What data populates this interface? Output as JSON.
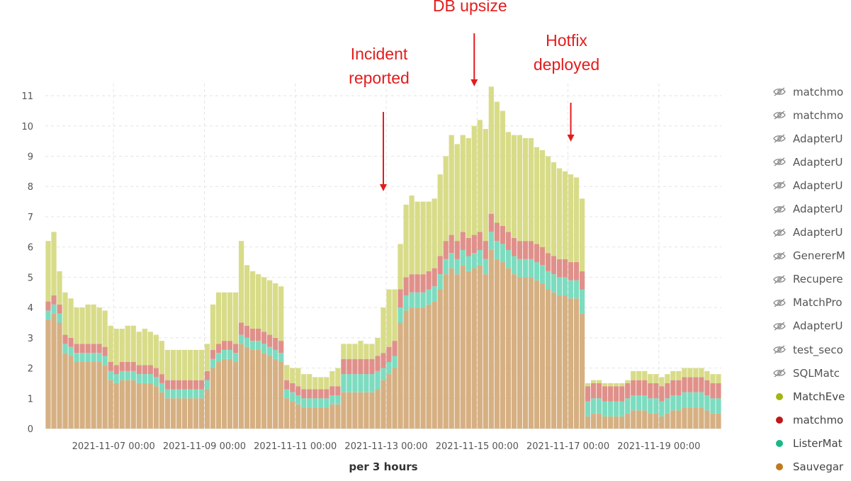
{
  "chart_data": {
    "type": "bar",
    "stacked": true,
    "xlabel": "per 3 hours",
    "ylabel": "",
    "ylim": [
      0,
      11.4
    ],
    "yticks": [
      0,
      1,
      2,
      3,
      4,
      5,
      6,
      7,
      8,
      9,
      10,
      11
    ],
    "grid": true,
    "interval_hours": 3,
    "x_start": "2021-11-05 12:00",
    "xtick_labels": [
      "2021-11-07 00:00",
      "2021-11-09 00:00",
      "2021-11-11 00:00",
      "2021-11-13 00:00",
      "2021-11-15 00:00",
      "2021-11-17 00:00",
      "2021-11-19 00:00"
    ],
    "xtick_index": [
      12,
      28,
      44,
      60,
      76,
      92,
      108
    ],
    "annotations": [
      {
        "lines": [
          "Incident",
          "reported"
        ],
        "at_index": 59
      },
      {
        "lines": [
          "DB upsize"
        ],
        "at_index": 75
      },
      {
        "lines": [
          "Hotfix",
          "deployed"
        ],
        "at_index": 92
      }
    ],
    "series": [
      {
        "name": "Sauvegarde",
        "color": "#d6b082",
        "values": [
          3.6,
          3.8,
          3.5,
          2.5,
          2.4,
          2.2,
          2.2,
          2.2,
          2.2,
          2.2,
          2.1,
          1.6,
          1.5,
          1.6,
          1.6,
          1.6,
          1.5,
          1.5,
          1.5,
          1.4,
          1.2,
          1.0,
          1.0,
          1.0,
          1.0,
          1.0,
          1.0,
          1.0,
          1.3,
          2.0,
          2.2,
          2.3,
          2.3,
          2.2,
          2.8,
          2.7,
          2.6,
          2.6,
          2.5,
          2.4,
          2.3,
          2.2,
          1.0,
          0.9,
          0.8,
          0.7,
          0.7,
          0.7,
          0.7,
          0.7,
          0.8,
          0.8,
          1.2,
          1.2,
          1.2,
          1.2,
          1.2,
          1.2,
          1.3,
          1.6,
          1.8,
          2.0,
          3.5,
          3.9,
          4.0,
          4.0,
          4.0,
          4.1,
          4.2,
          4.6,
          5.1,
          5.3,
          5.1,
          5.4,
          5.2,
          5.3,
          5.4,
          5.1,
          5.9,
          5.6,
          5.5,
          5.3,
          5.1,
          5.0,
          5.0,
          5.0,
          4.9,
          4.8,
          4.6,
          4.5,
          4.4,
          4.4,
          4.3,
          4.3,
          3.8,
          0.4,
          0.5,
          0.5,
          0.4,
          0.4,
          0.4,
          0.4,
          0.5,
          0.6,
          0.6,
          0.6,
          0.5,
          0.5,
          0.4,
          0.5,
          0.6,
          0.6,
          0.7,
          0.7,
          0.7,
          0.7,
          0.6,
          0.5,
          0.5
        ]
      },
      {
        "name": "ListerMatchs",
        "color": "#7ddcc0",
        "values": [
          0.3,
          0.3,
          0.3,
          0.3,
          0.3,
          0.3,
          0.3,
          0.3,
          0.3,
          0.3,
          0.3,
          0.3,
          0.3,
          0.3,
          0.3,
          0.3,
          0.3,
          0.3,
          0.3,
          0.3,
          0.3,
          0.3,
          0.3,
          0.3,
          0.3,
          0.3,
          0.3,
          0.3,
          0.3,
          0.3,
          0.3,
          0.3,
          0.3,
          0.3,
          0.3,
          0.3,
          0.3,
          0.3,
          0.3,
          0.3,
          0.3,
          0.3,
          0.3,
          0.3,
          0.3,
          0.3,
          0.3,
          0.3,
          0.3,
          0.3,
          0.3,
          0.3,
          0.6,
          0.6,
          0.6,
          0.6,
          0.6,
          0.6,
          0.6,
          0.4,
          0.4,
          0.4,
          0.5,
          0.5,
          0.5,
          0.5,
          0.5,
          0.5,
          0.5,
          0.5,
          0.5,
          0.5,
          0.5,
          0.5,
          0.5,
          0.5,
          0.5,
          0.5,
          0.6,
          0.6,
          0.6,
          0.6,
          0.6,
          0.6,
          0.6,
          0.6,
          0.6,
          0.6,
          0.6,
          0.6,
          0.6,
          0.6,
          0.6,
          0.6,
          0.8,
          0.5,
          0.5,
          0.5,
          0.5,
          0.5,
          0.5,
          0.5,
          0.5,
          0.5,
          0.5,
          0.5,
          0.5,
          0.5,
          0.5,
          0.5,
          0.5,
          0.5,
          0.5,
          0.5,
          0.5,
          0.5,
          0.5,
          0.5,
          0.5
        ]
      },
      {
        "name": "matchmodels",
        "color": "#e0908a",
        "values": [
          0.3,
          0.3,
          0.3,
          0.3,
          0.3,
          0.3,
          0.3,
          0.3,
          0.3,
          0.3,
          0.3,
          0.3,
          0.3,
          0.3,
          0.3,
          0.3,
          0.3,
          0.3,
          0.3,
          0.3,
          0.3,
          0.3,
          0.3,
          0.3,
          0.3,
          0.3,
          0.3,
          0.3,
          0.3,
          0.3,
          0.3,
          0.3,
          0.3,
          0.3,
          0.4,
          0.4,
          0.4,
          0.4,
          0.4,
          0.4,
          0.4,
          0.4,
          0.3,
          0.3,
          0.3,
          0.3,
          0.3,
          0.3,
          0.3,
          0.3,
          0.3,
          0.3,
          0.5,
          0.5,
          0.5,
          0.5,
          0.5,
          0.5,
          0.5,
          0.5,
          0.5,
          0.5,
          0.6,
          0.6,
          0.6,
          0.6,
          0.6,
          0.6,
          0.6,
          0.6,
          0.6,
          0.6,
          0.6,
          0.6,
          0.6,
          0.6,
          0.6,
          0.6,
          0.6,
          0.6,
          0.6,
          0.6,
          0.6,
          0.6,
          0.6,
          0.6,
          0.6,
          0.6,
          0.6,
          0.6,
          0.6,
          0.6,
          0.6,
          0.6,
          0.6,
          0.5,
          0.5,
          0.5,
          0.5,
          0.5,
          0.5,
          0.5,
          0.5,
          0.5,
          0.5,
          0.5,
          0.5,
          0.5,
          0.5,
          0.5,
          0.5,
          0.5,
          0.5,
          0.5,
          0.5,
          0.5,
          0.5,
          0.5,
          0.5
        ]
      },
      {
        "name": "MatchEvents",
        "color": "#d8dc88",
        "values": [
          2.0,
          2.1,
          1.1,
          1.4,
          1.3,
          1.2,
          1.2,
          1.3,
          1.3,
          1.2,
          1.2,
          1.2,
          1.2,
          1.1,
          1.2,
          1.2,
          1.1,
          1.2,
          1.1,
          1.1,
          1.1,
          1.0,
          1.0,
          1.0,
          1.0,
          1.0,
          1.0,
          1.0,
          0.9,
          1.5,
          1.7,
          1.6,
          1.6,
          1.7,
          2.7,
          2.0,
          1.9,
          1.8,
          1.8,
          1.8,
          1.8,
          1.8,
          0.5,
          0.5,
          0.6,
          0.5,
          0.5,
          0.4,
          0.4,
          0.4,
          0.5,
          0.6,
          0.5,
          0.5,
          0.5,
          0.6,
          0.5,
          0.5,
          0.6,
          1.5,
          1.9,
          1.7,
          1.5,
          2.4,
          2.6,
          2.4,
          2.4,
          2.3,
          2.3,
          2.7,
          2.8,
          3.3,
          3.2,
          3.2,
          3.3,
          3.6,
          3.7,
          3.7,
          4.2,
          4.0,
          3.8,
          3.3,
          3.4,
          3.5,
          3.4,
          3.4,
          3.2,
          3.2,
          3.2,
          3.1,
          3.0,
          2.9,
          2.9,
          2.8,
          2.4,
          0.1,
          0.1,
          0.1,
          0.1,
          0.1,
          0.1,
          0.1,
          0.1,
          0.3,
          0.3,
          0.3,
          0.3,
          0.3,
          0.3,
          0.3,
          0.3,
          0.3,
          0.3,
          0.3,
          0.3,
          0.3,
          0.3,
          0.3,
          0.3
        ]
      }
    ],
    "legend": [
      {
        "label": "matchmo",
        "hidden": true
      },
      {
        "label": "matchmo",
        "hidden": true
      },
      {
        "label": "AdapterU",
        "hidden": true
      },
      {
        "label": "AdapterU",
        "hidden": true
      },
      {
        "label": "AdapterU",
        "hidden": true
      },
      {
        "label": "AdapterU",
        "hidden": true
      },
      {
        "label": "AdapterU",
        "hidden": true
      },
      {
        "label": "GenererM",
        "hidden": true
      },
      {
        "label": "Recupere",
        "hidden": true
      },
      {
        "label": "MatchPro",
        "hidden": true
      },
      {
        "label": "AdapterU",
        "hidden": true
      },
      {
        "label": "test_seco",
        "hidden": true
      },
      {
        "label": "SQLMatc",
        "hidden": true
      },
      {
        "label": "MatchEve",
        "hidden": false,
        "color": "#a3b512"
      },
      {
        "label": "matchmo",
        "hidden": false,
        "color": "#c01818"
      },
      {
        "label": "ListerMat",
        "hidden": false,
        "color": "#17b986"
      },
      {
        "label": "Sauvegar",
        "hidden": false,
        "color": "#c07a1e"
      }
    ]
  }
}
